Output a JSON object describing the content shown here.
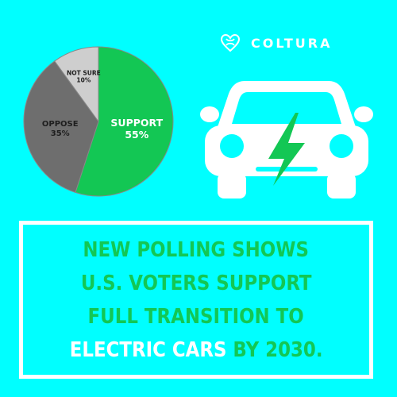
{
  "brand": {
    "name": "COLTURA",
    "logo_icon": "heart-outline-icon"
  },
  "colors": {
    "background": "#00FFFF",
    "support": "#13C754",
    "oppose": "#6E6E6E",
    "not_sure": "#CECECE",
    "accent_green": "#13C754",
    "white": "#FFFFFF"
  },
  "chart_data": {
    "type": "pie",
    "slices": [
      {
        "label": "SUPPORT",
        "value": 55,
        "value_label": "55%",
        "color": "#13C754"
      },
      {
        "label": "OPPOSE",
        "value": 35,
        "value_label": "35%",
        "color": "#6E6E6E"
      },
      {
        "label": "NOT SURE",
        "value": 10,
        "value_label": "10%",
        "color": "#CECECE"
      }
    ]
  },
  "illustration": {
    "icon": "electric-car-icon",
    "bolt_icon": "lightning-bolt-icon"
  },
  "headline": {
    "line1": "NEW POLLING SHOWS",
    "line2": "U.S. VOTERS SUPPORT",
    "line3": "FULL TRANSITION TO",
    "line4_highlight": "ELECTRIC CARS",
    "line4_rest": " BY 2030."
  }
}
